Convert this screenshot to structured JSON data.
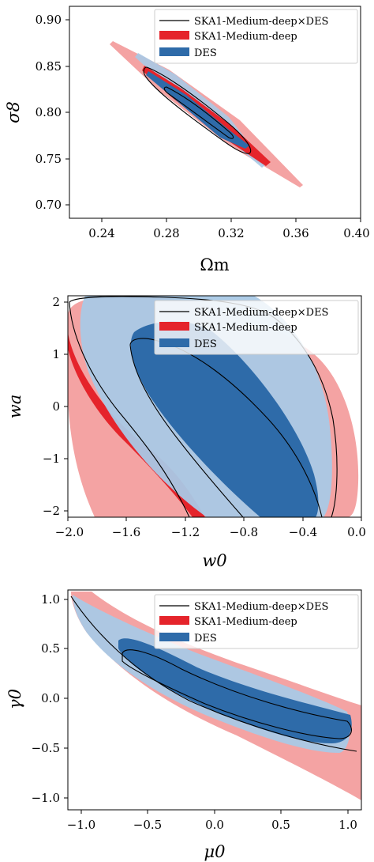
{
  "colors": {
    "combined": "#000000",
    "ska_fill_outer": "#f4a3a3",
    "ska_fill_inner": "#e5242b",
    "des_fill_outer": "#a9c9e6",
    "des_fill_inner": "#2e6ba9"
  },
  "legend_labels": [
    "SKA1-Medium-deep×DES",
    "SKA1-Medium-deep",
    "DES"
  ],
  "chart_data": [
    {
      "type": "contour",
      "xlabel": "Ωm",
      "ylabel": "σ8",
      "xlim": [
        0.22,
        0.4
      ],
      "ylim": [
        0.68,
        0.92
      ],
      "xticks": [
        "0.24",
        "0.28",
        "0.32",
        "0.36",
        "0.40"
      ],
      "yticks": [
        "0.70",
        "0.75",
        "0.80",
        "0.85",
        "0.90"
      ],
      "legend": "top-right",
      "series": [
        {
          "name": "SKA1-Medium-deep",
          "center": [
            0.305,
            0.8
          ],
          "corners": [
            [
              0.247,
              0.878
            ],
            [
              0.365,
              0.722
            ]
          ],
          "width": 0.011
        },
        {
          "name": "DES",
          "center": [
            0.3,
            0.8
          ],
          "corners": [
            [
              0.262,
              0.864
            ],
            [
              0.338,
              0.738
            ]
          ],
          "width": 0.009
        },
        {
          "name": "SKA1-Medium-deep×DES",
          "center": [
            0.3,
            0.802
          ],
          "corners": [
            [
              0.266,
              0.85
            ],
            [
              0.334,
              0.754
            ]
          ],
          "width": 0.005
        }
      ]
    },
    {
      "type": "contour",
      "xlabel": "w0",
      "ylabel": "wa",
      "xlim": [
        -2.0,
        0.0
      ],
      "ylim": [
        -2.1,
        2.1
      ],
      "xticks": [
        "−2.0",
        "−1.6",
        "−1.2",
        "−0.8",
        "−0.4",
        "0.0"
      ],
      "yticks": [
        "−2",
        "−1",
        "0",
        "1",
        "2"
      ],
      "legend": "top-right",
      "series": [
        {
          "name": "SKA1-Medium-deep",
          "center": [
            -1.05,
            0.2
          ],
          "corners": [
            [
              -2.0,
              1.8
            ],
            [
              -0.05,
              -1.4
            ]
          ],
          "width": 0.55
        },
        {
          "name": "DES",
          "center": [
            -0.95,
            0.05
          ],
          "corners": [
            [
              -1.85,
              2.1
            ],
            [
              -0.2,
              -2.0
            ]
          ],
          "width": 0.45
        },
        {
          "name": "SKA1-Medium-deep×DES",
          "center": [
            -0.8,
            -0.4
          ],
          "corners": [
            [
              -1.25,
              1.25
            ],
            [
              -0.3,
              -2.1
            ]
          ],
          "width": 0.3
        }
      ]
    },
    {
      "type": "contour",
      "xlabel": "μ0",
      "ylabel": "γ0",
      "xlim": [
        -1.1,
        1.1
      ],
      "ylim": [
        -1.1,
        1.1
      ],
      "xticks": [
        "−1.0",
        "−0.5",
        "0.0",
        "0.5",
        "1.0"
      ],
      "yticks": [
        "1.0",
        "0.5",
        "0.0",
        "−0.5",
        "−1.0"
      ],
      "legend": "top-right",
      "series": [
        {
          "name": "SKA1-Medium-deep",
          "center": [
            0.0,
            -0.3
          ],
          "corners": [
            [
              -1.05,
              1.08
            ],
            [
              1.08,
              -0.8
            ]
          ],
          "width": 0.12
        },
        {
          "name": "DES",
          "center": [
            0.0,
            -0.25
          ],
          "corners": [
            [
              -1.0,
              1.05
            ],
            [
              1.0,
              -0.95
            ]
          ],
          "width": 0.1
        },
        {
          "name": "SKA1-Medium-deep×DES",
          "center": [
            0.0,
            -0.3
          ],
          "corners": [
            [
              -0.7,
              0.55
            ],
            [
              0.95,
              -0.85
            ]
          ],
          "width": 0.06
        }
      ]
    }
  ]
}
